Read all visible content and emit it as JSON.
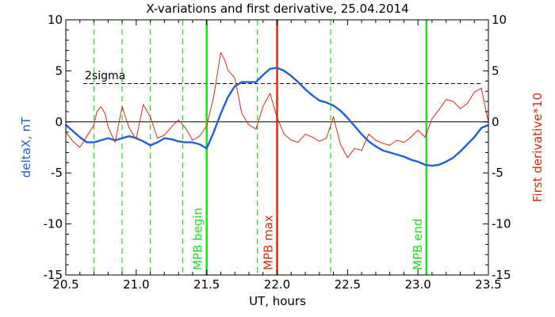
{
  "chart_data": {
    "type": "line",
    "title": "X-variations and first derivative, 25.04.2014",
    "xlabel": "UT, hours",
    "ylabel_left": "deltaX, nT",
    "ylabel_right": "First derivative*10",
    "xlim": [
      20.5,
      23.5
    ],
    "ylim": [
      -15,
      10
    ],
    "y2lim": [
      -15,
      10
    ],
    "x_ticks": [
      "20.5",
      "21.0",
      "21.5",
      "22.0",
      "22.5",
      "23.0",
      "23.5"
    ],
    "y_ticks": [
      "10",
      "5",
      "0",
      "-5",
      "-10",
      "-15"
    ],
    "y2_ticks": [
      "10",
      "5",
      "0",
      "-5",
      "-10",
      "-15"
    ],
    "colors": {
      "deltaX": "#1f5fd6",
      "derivative": "#d42a10",
      "mpb_boundary": "#19e019",
      "mpb_max": "#e02a12",
      "dashed_markers": "#19e019",
      "sigma_line": "#000000",
      "zero_line": "#000000"
    },
    "sigma_level": 3.75,
    "sigma_label": "2sigma",
    "zero_level": 0,
    "dashed_vertical_lines_x": [
      20.7,
      20.9,
      21.1,
      21.33,
      21.86,
      22.38
    ],
    "markers": [
      {
        "x": 21.5,
        "label": "MPB begin",
        "kind": "boundary"
      },
      {
        "x": 22.0,
        "label": "MPB max",
        "kind": "max"
      },
      {
        "x": 23.06,
        "label": "MPB end",
        "kind": "boundary"
      }
    ],
    "series": [
      {
        "name": "deltaX, nT",
        "axis": "left",
        "x": [
          20.5,
          20.55,
          20.6,
          20.65,
          20.7,
          20.75,
          20.8,
          20.85,
          20.9,
          20.95,
          21.0,
          21.05,
          21.1,
          21.15,
          21.2,
          21.25,
          21.3,
          21.35,
          21.4,
          21.45,
          21.5,
          21.55,
          21.6,
          21.65,
          21.7,
          21.75,
          21.8,
          21.85,
          21.9,
          21.95,
          22.0,
          22.05,
          22.1,
          22.15,
          22.2,
          22.25,
          22.3,
          22.35,
          22.4,
          22.45,
          22.5,
          22.55,
          22.6,
          22.65,
          22.7,
          22.75,
          22.8,
          22.85,
          22.9,
          22.95,
          23.0,
          23.05,
          23.1,
          23.15,
          23.2,
          23.25,
          23.3,
          23.35,
          23.4,
          23.45,
          23.5
        ],
        "y": [
          -0.3,
          -0.9,
          -1.5,
          -2.0,
          -2.0,
          -1.8,
          -1.6,
          -1.8,
          -1.6,
          -1.4,
          -1.6,
          -1.9,
          -2.3,
          -2.0,
          -1.6,
          -1.7,
          -1.9,
          -2.0,
          -2.0,
          -2.2,
          -2.6,
          -1.0,
          0.8,
          2.4,
          3.5,
          3.9,
          3.9,
          3.9,
          4.6,
          5.2,
          5.3,
          5.0,
          4.5,
          3.9,
          3.2,
          2.6,
          2.1,
          1.9,
          1.6,
          1.1,
          0.4,
          -0.4,
          -1.2,
          -1.9,
          -2.4,
          -2.8,
          -3.0,
          -3.2,
          -3.4,
          -3.7,
          -3.9,
          -4.2,
          -4.3,
          -4.2,
          -3.9,
          -3.5,
          -2.9,
          -2.2,
          -1.5,
          -0.6,
          -0.3
        ]
      },
      {
        "name": "First derivative*10",
        "axis": "right",
        "x": [
          20.5,
          20.55,
          20.6,
          20.65,
          20.7,
          20.72,
          20.75,
          20.78,
          20.8,
          20.85,
          20.9,
          20.95,
          21.0,
          21.05,
          21.1,
          21.15,
          21.2,
          21.25,
          21.3,
          21.35,
          21.4,
          21.45,
          21.5,
          21.55,
          21.6,
          21.63,
          21.65,
          21.7,
          21.75,
          21.8,
          21.85,
          21.9,
          21.95,
          22.0,
          22.05,
          22.1,
          22.15,
          22.2,
          22.25,
          22.3,
          22.35,
          22.4,
          22.45,
          22.5,
          22.55,
          22.6,
          22.65,
          22.7,
          22.75,
          22.8,
          22.85,
          22.9,
          22.95,
          23.0,
          23.05,
          23.1,
          23.15,
          23.2,
          23.25,
          23.3,
          23.35,
          23.4,
          23.45,
          23.5
        ],
        "y": [
          -1.0,
          -1.9,
          -2.5,
          -1.4,
          -0.3,
          1.0,
          1.5,
          0.8,
          -0.5,
          -2.0,
          1.5,
          -0.6,
          -1.7,
          1.7,
          0.5,
          -1.6,
          -1.3,
          -0.5,
          0.2,
          -0.6,
          -1.8,
          -1.4,
          -0.4,
          2.5,
          6.8,
          6.0,
          5.1,
          4.3,
          0.8,
          -0.3,
          -0.7,
          1.5,
          2.8,
          0.4,
          -1.2,
          -1.8,
          -2.0,
          -1.2,
          -1.5,
          -1.9,
          -1.6,
          0.5,
          -2.2,
          -3.5,
          -2.6,
          -2.8,
          -1.2,
          -1.8,
          -2.1,
          -2.3,
          -1.8,
          -2.0,
          -1.5,
          -0.8,
          -1.5,
          0.3,
          1.2,
          2.2,
          2.0,
          1.3,
          1.8,
          2.9,
          3.3,
          0.0
        ]
      }
    ]
  }
}
